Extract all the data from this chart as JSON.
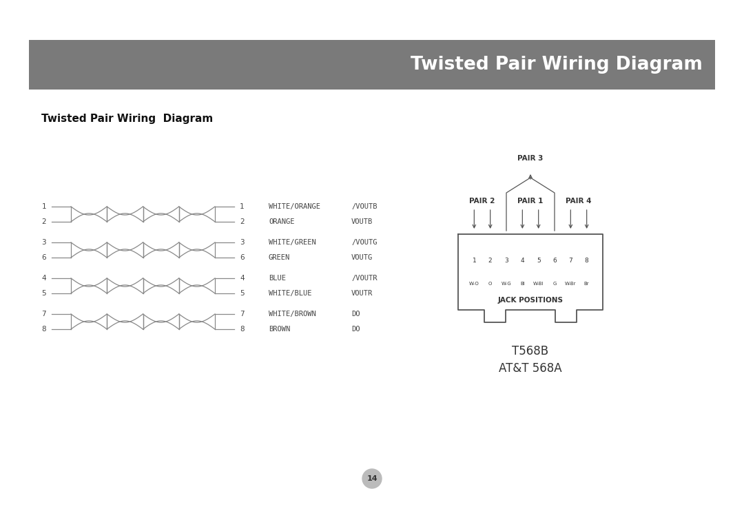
{
  "title_banner": "Twisted Pair Wiring Diagram",
  "title_banner_bg": "#7a7a7a",
  "title_banner_fg": "#ffffff",
  "subtitle": "Twisted Pair Wiring  Diagram",
  "bg_color": "#ffffff",
  "wire_rows": [
    {
      "num1": "1",
      "num2": "1",
      "color_name": "WHITE/ORANGE",
      "signal": "/VOUTB"
    },
    {
      "num1": "2",
      "num2": "2",
      "color_name": "ORANGE",
      "signal": "VOUTB"
    },
    {
      "num1": "3",
      "num2": "3",
      "color_name": "WHITE/GREEN",
      "signal": "/VOUTG"
    },
    {
      "num1": "6",
      "num2": "6",
      "color_name": "GREEN",
      "signal": "VOUTG"
    },
    {
      "num1": "4",
      "num2": "4",
      "color_name": "BLUE",
      "signal": "/VOUTR"
    },
    {
      "num1": "5",
      "num2": "5",
      "color_name": "WHITE/BLUE",
      "signal": "VOUTR"
    },
    {
      "num1": "7",
      "num2": "7",
      "color_name": "WHITE/BROWN",
      "signal": "DO"
    },
    {
      "num1": "8",
      "num2": "8",
      "color_name": "BROWN",
      "signal": "DO"
    }
  ],
  "jack_positions_label": "JACK POSITIONS",
  "jack_numbers": [
    "1",
    "2",
    "3",
    "4",
    "5",
    "6",
    "7",
    "8"
  ],
  "jack_abbrevs": [
    "W-O",
    "O",
    "W-G",
    "Bl",
    "W-Bl",
    "G",
    "W-Br",
    "Br"
  ],
  "bottom_labels": [
    "T568B",
    "AT&T 568A"
  ],
  "page_number": "14"
}
